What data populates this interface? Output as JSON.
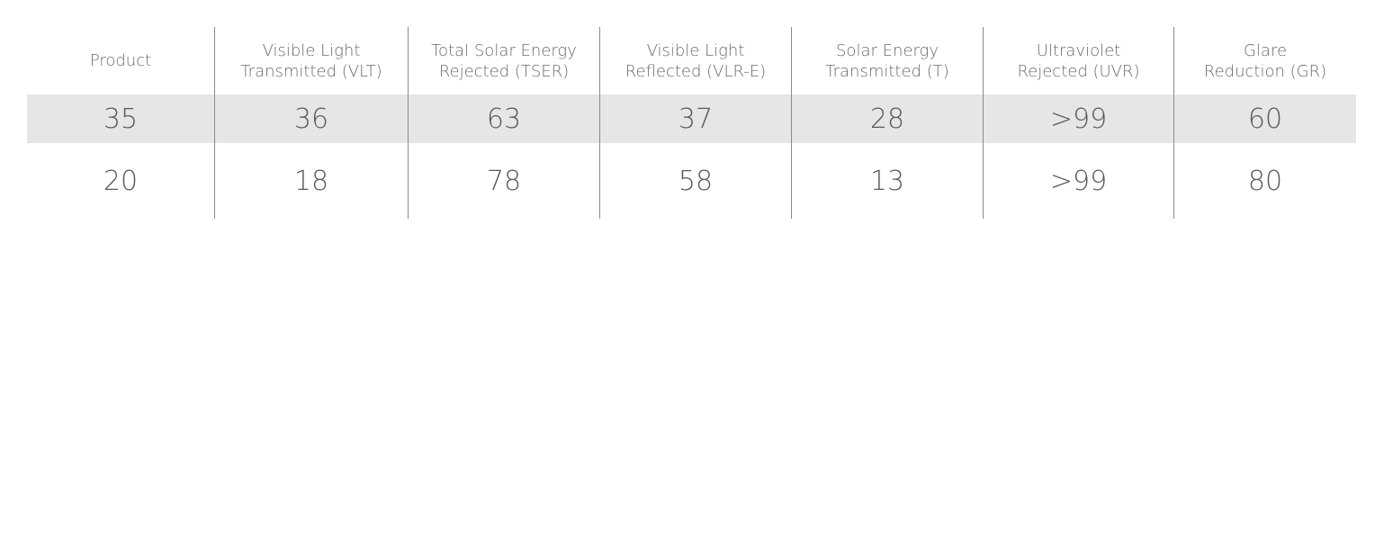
{
  "table": {
    "headers": [
      [
        "Product"
      ],
      [
        "Visible Light",
        "Transmitted (VLT)"
      ],
      [
        "Total Solar Energy",
        "Rejected (TSER)"
      ],
      [
        "Visible Light",
        "Reflected (VLR-E)"
      ],
      [
        "Solar Energy",
        "Transmitted (T)"
      ],
      [
        "Ultraviolet",
        "Rejected (UVR)"
      ],
      [
        "Glare",
        "Reduction (GR)"
      ]
    ],
    "rows": [
      [
        35,
        36,
        63,
        37,
        28,
        ">99",
        60
      ],
      [
        20,
        18,
        78,
        58,
        13,
        ">99",
        80
      ]
    ]
  }
}
